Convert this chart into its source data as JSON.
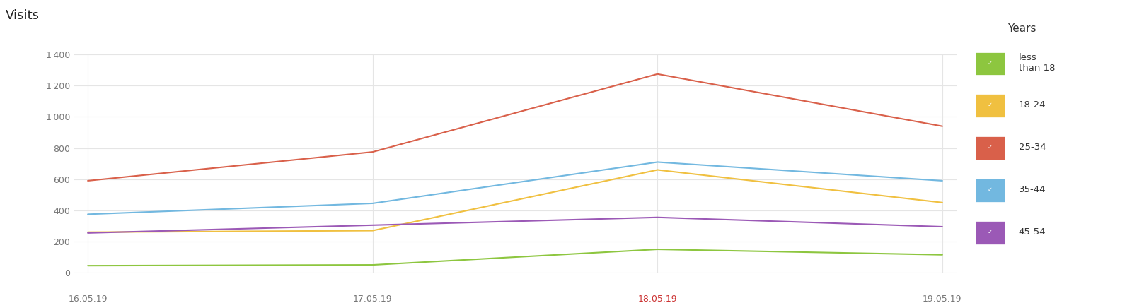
{
  "x_labels": [
    "16.05.19",
    "17.05.19",
    "18.05.19",
    "19.05.19"
  ],
  "x_positions": [
    0,
    1,
    2,
    3
  ],
  "series": [
    {
      "label": "less\nthan 18",
      "color": "#8dc63f",
      "values": [
        45,
        50,
        150,
        115
      ]
    },
    {
      "label": "18-24",
      "color": "#f0c040",
      "values": [
        260,
        270,
        660,
        450
      ]
    },
    {
      "label": "25-34",
      "color": "#d9604a",
      "values": [
        590,
        775,
        1275,
        940
      ]
    },
    {
      "label": "35-44",
      "color": "#72b8e0",
      "values": [
        375,
        445,
        710,
        590
      ]
    },
    {
      "label": "45-54",
      "color": "#9b59b6",
      "values": [
        255,
        305,
        355,
        295
      ]
    }
  ],
  "ylabel": "Visits",
  "ylim": [
    0,
    1400
  ],
  "yticks": [
    0,
    200,
    400,
    600,
    800,
    1000,
    1200,
    1400
  ],
  "legend_title": "Years",
  "background_color": "#ffffff",
  "grid_color": "#e5e5e5",
  "tick_label_color_normal": "#777777",
  "tick_label_color_highlight": "#cc3333",
  "highlight_x": [
    2
  ],
  "fig_width": 16.0,
  "fig_height": 4.29
}
